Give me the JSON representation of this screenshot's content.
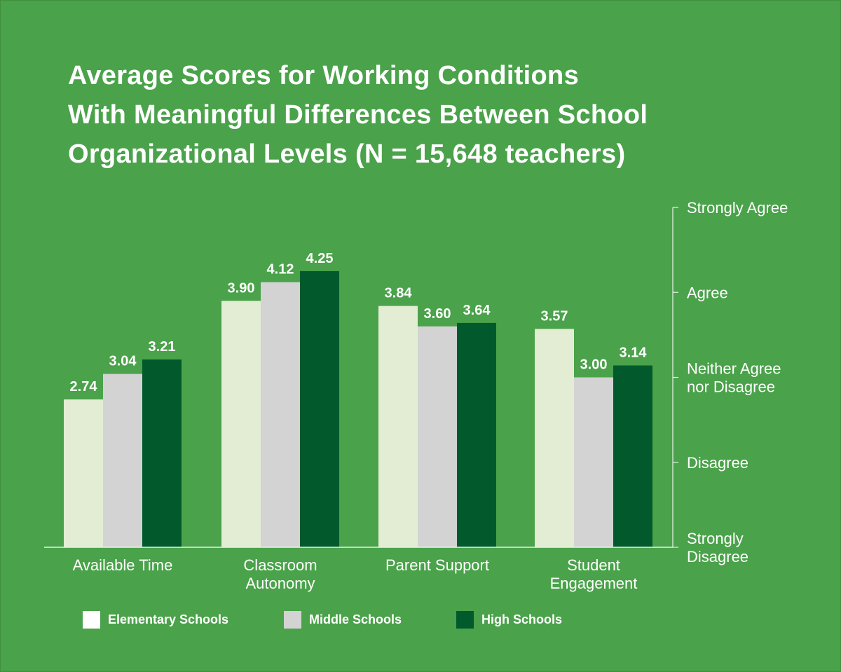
{
  "title_lines": [
    "Average Scores for Working Conditions",
    "With Meaningful Differences Between School",
    "Organizational Levels (N = 15,648 teachers)"
  ],
  "colors": {
    "background": "#4aa24a",
    "elementary": "#e2edd3",
    "middle": "#d3d3d3",
    "high": "#025a2c",
    "text": "#ffffff",
    "axis": "#e8f3e8"
  },
  "chart_data": {
    "type": "bar",
    "title": "Average Scores for Working Conditions With Meaningful Differences Between School Organizational Levels (N = 15,648 teachers)",
    "categories": [
      [
        "Available Time"
      ],
      [
        "Classroom",
        "Autonomy"
      ],
      [
        "Parent Support"
      ],
      [
        "Student",
        "Engagement"
      ]
    ],
    "series": [
      {
        "name": "Elementary Schools",
        "color_key": "elementary",
        "values": [
          2.74,
          3.9,
          3.84,
          3.57
        ],
        "labels": [
          "2.74",
          "3.90",
          "3.84",
          "3.57"
        ]
      },
      {
        "name": "Middle Schools",
        "color_key": "middle",
        "values": [
          3.04,
          4.12,
          3.6,
          3.0
        ],
        "labels": [
          "3.04",
          "4.12",
          "3.60",
          "3.00"
        ]
      },
      {
        "name": "High Schools",
        "color_key": "high",
        "values": [
          3.21,
          4.25,
          3.64,
          3.14
        ],
        "labels": [
          "3.21",
          "4.25",
          "3.64",
          "3.14"
        ]
      }
    ],
    "ylim": [
      1,
      5
    ],
    "y_ticks": [
      {
        "value": 5,
        "lines": [
          "Strongly Agree"
        ]
      },
      {
        "value": 4,
        "lines": [
          "Agree"
        ]
      },
      {
        "value": 3,
        "lines": [
          "Neither Agree",
          "nor Disagree"
        ]
      },
      {
        "value": 2,
        "lines": [
          "Disagree"
        ]
      },
      {
        "value": 1,
        "lines": [
          "Strongly",
          "Disagree"
        ]
      }
    ],
    "y_axis_side": "right",
    "grid": false,
    "legend_position": "bottom-left"
  }
}
